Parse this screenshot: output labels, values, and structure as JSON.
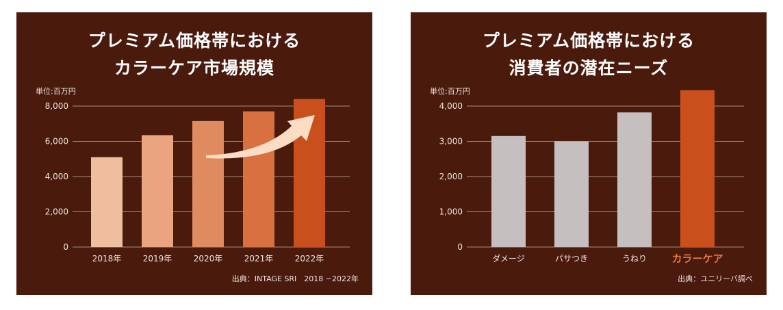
{
  "colors": {
    "panel_bg": "#4a1a0d",
    "grid": "#c9b4a8",
    "gray_bar": "#c5c0bf",
    "highlight": "#c9501c",
    "highlight_text": "#e8773f"
  },
  "chart_data": [
    {
      "type": "bar",
      "title": "プレミアム価格帯における カラーケア市場規模",
      "title_lines": [
        "プレミアム価格帯における",
        "カラーケア市場規模"
      ],
      "unit_label": "単位:百万円",
      "categories": [
        "2018年",
        "2019年",
        "2020年",
        "2021年",
        "2022年"
      ],
      "values": [
        5100,
        6350,
        7150,
        7700,
        8400
      ],
      "bar_colors": [
        "#efbe9f",
        "#eaa47f",
        "#e08a5f",
        "#d8713f",
        "#c9501c"
      ],
      "ylim": [
        0,
        8000
      ],
      "ytick_values": [
        0,
        2000,
        4000,
        6000,
        8000
      ],
      "ytick_labels": [
        "0",
        "2,000",
        "4,000",
        "6,000",
        "8,000"
      ],
      "grid": true,
      "annotation": "upward-trend-arrow",
      "source": "出典：INTAGE SRI　2018 −2022年"
    },
    {
      "type": "bar",
      "title": "プレミアム価格帯における 消費者の潜在ニーズ",
      "title_lines": [
        "プレミアム価格帯における",
        "消費者の潜在ニーズ"
      ],
      "unit_label": "単位:百万円",
      "categories": [
        "ダメージ",
        "パサつき",
        "うねり",
        "カラーケア"
      ],
      "values": [
        3150,
        3000,
        3820,
        4450
      ],
      "highlight_index": 3,
      "ylim": [
        0,
        4000
      ],
      "ytick_values": [
        0,
        1000,
        2000,
        3000,
        4000
      ],
      "ytick_labels": [
        "0",
        "1,000",
        "2,000",
        "3,000",
        "4,000"
      ],
      "grid": true,
      "source": "出典：ユニリーバ調べ"
    }
  ]
}
